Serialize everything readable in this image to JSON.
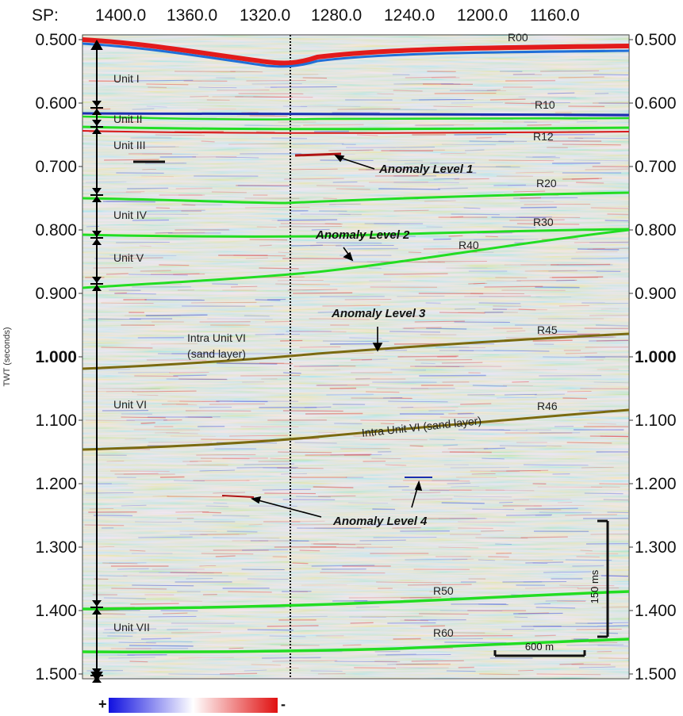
{
  "header": {
    "sp_label": "SP:",
    "sp_ticks": [
      "1400.0",
      "1360.0",
      "1320.0",
      "1280.0",
      "1240.0",
      "1200.0",
      "1160.0"
    ]
  },
  "y_axis": {
    "label": "TWT (seconds)",
    "ticks": [
      "0.500",
      "0.600",
      "0.700",
      "0.800",
      "0.900",
      "1.000",
      "1.100",
      "1.200",
      "1.300",
      "1.400",
      "1.500"
    ],
    "bold_tick": "1.000"
  },
  "units": [
    "Unit I",
    "Unit II",
    "Unit III",
    "Unit IV",
    "Unit V",
    "Unit VI",
    "Unit VII"
  ],
  "reflectors": [
    "R00",
    "R10",
    "R12",
    "R20",
    "R30",
    "R40",
    "R45",
    "R46",
    "R50",
    "R60"
  ],
  "intra_labels": {
    "upper_line1": "Intra Unit VI",
    "upper_line2": "(sand layer)",
    "lower": "Intra Unit VI (sand layer)"
  },
  "anomalies": [
    "Anomaly Level 1",
    "Anomaly Level 2",
    "Anomaly Level 3",
    "Anomaly Level 4"
  ],
  "scale_bars": {
    "vertical": "150 ms",
    "horizontal": "600 m"
  },
  "colorbar": {
    "plus": "+",
    "minus": "-"
  },
  "colors": {
    "horizon_green": "#22dd22",
    "horizon_olive": "#7a6a10",
    "positive": "#1a1aee",
    "negative": "#ee1a1a"
  }
}
